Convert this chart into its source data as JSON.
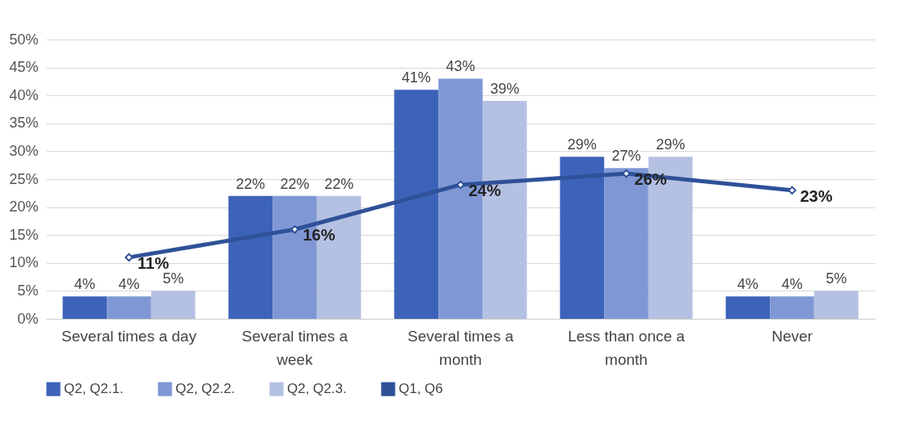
{
  "chart_data": {
    "type": "bar",
    "categories": [
      "Several times a day",
      "Several times a week",
      "Several times a month",
      "Less than once a month",
      "Never"
    ],
    "series": [
      {
        "name": "Q2, Q2.1.",
        "color": "#3c63b9",
        "values": [
          4,
          22,
          41,
          29,
          4
        ],
        "value_labels": [
          "4%",
          "22%",
          "41%",
          "29%",
          "4%"
        ]
      },
      {
        "name": "Q2, Q2.2.",
        "color": "#7f98d5",
        "values": [
          4,
          22,
          43,
          27,
          4
        ],
        "value_labels": [
          "4%",
          "22%",
          "43%",
          "27%",
          "4%"
        ]
      },
      {
        "name": "Q2, Q2.3.",
        "color": "#b5c1e3",
        "values": [
          5,
          22,
          39,
          29,
          5
        ],
        "value_labels": [
          "5%",
          "22%",
          "39%",
          "29%",
          "5%"
        ]
      },
      {
        "name": "Q1, Q6",
        "type": "line",
        "color": "#2f5198",
        "marker": "diamond",
        "values": [
          11,
          16,
          24,
          26,
          23
        ],
        "value_labels": [
          "11%",
          "16%",
          "24%",
          "26%",
          "23%"
        ]
      }
    ],
    "ylim": [
      0,
      50
    ],
    "yticks": [
      {
        "value": 0,
        "label": "0%"
      },
      {
        "value": 5,
        "label": "5%"
      },
      {
        "value": 10,
        "label": "10%"
      },
      {
        "value": 15,
        "label": "15%"
      },
      {
        "value": 20,
        "label": "20%"
      },
      {
        "value": 25,
        "label": "25%"
      },
      {
        "value": 30,
        "label": "30%"
      },
      {
        "value": 35,
        "label": "35%"
      },
      {
        "value": 40,
        "label": "40%"
      },
      {
        "value": 45,
        "label": "45%"
      },
      {
        "value": 50,
        "label": "50%"
      }
    ],
    "grid": "y",
    "legend": "bottom"
  }
}
